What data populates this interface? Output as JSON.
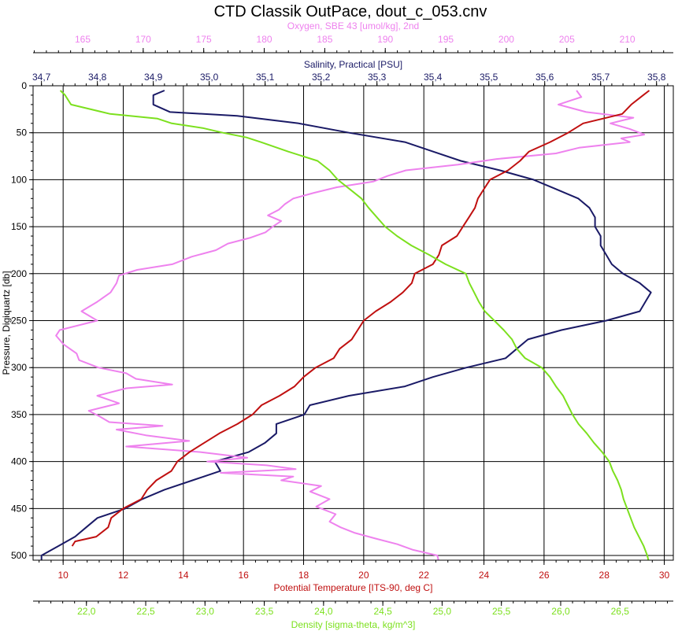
{
  "chart_data": {
    "type": "line",
    "title": "CTD Classik OutPace, dout_c_053.cnv",
    "grid": true,
    "colors": {
      "salinity": "#1a1a66",
      "oxygen": "#ee82ee",
      "temperature": "#c01010",
      "density": "#7ce01e",
      "grid": "#000000",
      "text": "#000000"
    },
    "y_axis": {
      "label": "Pressure, Digiquartz [db]",
      "range": [
        0,
        505
      ],
      "inverted": true,
      "ticks": [
        0,
        50,
        100,
        150,
        200,
        250,
        300,
        350,
        400,
        450,
        500
      ],
      "tick_labels": [
        "0",
        "50",
        "100",
        "150",
        "200",
        "250",
        "300",
        "350",
        "400",
        "450",
        "500"
      ]
    },
    "x_axes": [
      {
        "id": "oxygen",
        "position": "top",
        "label": "Oxygen, SBE 43 [umol/kg], 2nd",
        "range": [
          160.9,
          213.8
        ],
        "ticks": [
          165,
          170,
          175,
          180,
          185,
          190,
          195,
          200,
          205,
          210
        ],
        "tick_labels": [
          "165",
          "170",
          "175",
          "180",
          "185",
          "190",
          "195",
          "200",
          "205",
          "210"
        ]
      },
      {
        "id": "salinity",
        "position": "top",
        "label": "Salinity, Practical [PSU]",
        "range": [
          34.685,
          35.83
        ],
        "ticks": [
          34.7,
          34.8,
          34.9,
          35.0,
          35.1,
          35.2,
          35.3,
          35.4,
          35.5,
          35.6,
          35.7,
          35.8
        ],
        "tick_labels": [
          "34,7",
          "34,8",
          "34,9",
          "35,0",
          "35,1",
          "35,2",
          "35,3",
          "35,4",
          "35,5",
          "35,6",
          "35,7",
          "35,8"
        ]
      },
      {
        "id": "temperature",
        "position": "bottom",
        "label": "Potential Temperature [ITS-90, deg C]",
        "range": [
          9.0,
          30.3
        ],
        "ticks": [
          10,
          12,
          14,
          16,
          18,
          20,
          22,
          24,
          26,
          28,
          30
        ],
        "tick_labels": [
          "10",
          "12",
          "14",
          "16",
          "18",
          "20",
          "22",
          "24",
          "26",
          "28",
          "30"
        ]
      },
      {
        "id": "density",
        "position": "bottom",
        "label": "Density [sigma-theta, kg/m^3]",
        "range": [
          21.55,
          26.95
        ],
        "ticks": [
          22.0,
          22.5,
          23.0,
          23.5,
          24.0,
          24.5,
          25.0,
          25.5,
          26.0,
          26.5
        ],
        "tick_labels": [
          "22,0",
          "22,5",
          "23,0",
          "23,5",
          "24,0",
          "24,5",
          "25,0",
          "25,5",
          "26,0",
          "26,5"
        ]
      }
    ],
    "series": [
      {
        "id": "salinity",
        "axis": "salinity",
        "y": [
          5,
          10,
          20,
          28,
          32,
          40,
          50,
          60,
          70,
          80,
          90,
          100,
          110,
          120,
          130,
          140,
          150,
          160,
          170,
          180,
          190,
          200,
          210,
          220,
          230,
          240,
          250,
          260,
          270,
          280,
          290,
          300,
          310,
          320,
          330,
          340,
          350,
          360,
          370,
          380,
          390,
          400,
          410,
          420,
          430,
          440,
          450,
          460,
          470,
          480,
          490,
          500,
          505
        ],
        "x": [
          34.92,
          34.9,
          34.9,
          34.93,
          35.05,
          35.16,
          35.25,
          35.35,
          35.4,
          35.45,
          35.52,
          35.58,
          35.62,
          35.66,
          35.68,
          35.69,
          35.69,
          35.7,
          35.7,
          35.71,
          35.72,
          35.74,
          35.77,
          35.79,
          35.78,
          35.77,
          35.71,
          35.63,
          35.57,
          35.55,
          35.53,
          35.46,
          35.4,
          35.35,
          35.25,
          35.18,
          35.17,
          35.12,
          35.12,
          35.1,
          35.07,
          35.01,
          35.02,
          34.97,
          34.92,
          34.88,
          34.85,
          34.8,
          34.78,
          34.76,
          34.73,
          34.7,
          34.7
        ]
      },
      {
        "id": "oxygen",
        "axis": "oxygen",
        "y": [
          5,
          12,
          20,
          28,
          34,
          40,
          46,
          52,
          56,
          60,
          66,
          72,
          78,
          84,
          90,
          96,
          102,
          108,
          114,
          120,
          126,
          132,
          138,
          144,
          150,
          156,
          162,
          168,
          175,
          182,
          190,
          196,
          202,
          210,
          220,
          230,
          240,
          250,
          260,
          266,
          275,
          285,
          292,
          300,
          306,
          312,
          318,
          322,
          330,
          338,
          346,
          352,
          358,
          362,
          366,
          372,
          378,
          384,
          390,
          396,
          400,
          404,
          408,
          412,
          416,
          420,
          426,
          432,
          440,
          448,
          456,
          464,
          470,
          476,
          482,
          488,
          494,
          500,
          505
        ],
        "x": [
          205.8,
          206.2,
          204.3,
          206.6,
          210.5,
          208.6,
          210.2,
          211.4,
          209.5,
          210.2,
          206.0,
          204.1,
          199.2,
          196.0,
          191.7,
          190.2,
          189.0,
          186.0,
          184.1,
          182.4,
          181.7,
          181.2,
          180.3,
          181.4,
          180.7,
          180.1,
          178.8,
          177.0,
          176.0,
          174.0,
          172.4,
          169.5,
          168.0,
          167.8,
          167.3,
          166.2,
          164.9,
          166.2,
          163.1,
          162.8,
          163.4,
          164.5,
          164.7,
          166.3,
          168.6,
          169.4,
          172.4,
          168.6,
          166.2,
          168.0,
          165.5,
          166.4,
          167.2,
          171.6,
          167.8,
          170.2,
          173.8,
          168.6,
          174.8,
          178.6,
          175.3,
          180.2,
          182.6,
          176.4,
          182.4,
          181.4,
          184.7,
          183.8,
          185.4,
          184.3,
          185.9,
          185.4,
          186.3,
          187.5,
          189.2,
          191.0,
          192.3,
          194.3,
          194.4
        ]
      },
      {
        "id": "temperature",
        "axis": "temperature",
        "y": [
          5,
          10,
          20,
          30,
          40,
          50,
          60,
          70,
          80,
          90,
          100,
          110,
          120,
          130,
          140,
          150,
          160,
          170,
          180,
          190,
          200,
          210,
          220,
          230,
          240,
          250,
          260,
          270,
          280,
          290,
          300,
          310,
          320,
          330,
          340,
          350,
          360,
          370,
          380,
          390,
          400,
          410,
          420,
          430,
          440,
          450,
          460,
          470,
          480,
          485,
          490
        ],
        "x": [
          29.5,
          29.3,
          28.9,
          28.6,
          27.3,
          26.8,
          26.2,
          25.5,
          25.2,
          24.8,
          24.2,
          24.0,
          23.8,
          23.7,
          23.5,
          23.3,
          23.1,
          22.6,
          22.5,
          22.3,
          21.7,
          21.6,
          21.3,
          20.9,
          20.4,
          20.0,
          19.8,
          19.6,
          19.2,
          19.0,
          18.4,
          18.0,
          17.7,
          17.2,
          16.6,
          16.3,
          15.8,
          15.2,
          14.7,
          14.2,
          13.8,
          13.6,
          13.1,
          12.8,
          12.6,
          12.0,
          11.6,
          11.5,
          11.1,
          10.4,
          10.3
        ]
      },
      {
        "id": "density",
        "axis": "density",
        "y": [
          5,
          10,
          20,
          30,
          35,
          40,
          45,
          50,
          55,
          60,
          70,
          80,
          90,
          100,
          110,
          120,
          130,
          140,
          150,
          160,
          170,
          180,
          190,
          200,
          210,
          220,
          230,
          240,
          250,
          260,
          270,
          280,
          290,
          300,
          310,
          320,
          330,
          340,
          350,
          360,
          370,
          380,
          390,
          400,
          410,
          420,
          430,
          440,
          450,
          460,
          470,
          480,
          490,
          500,
          505
        ],
        "x": [
          21.78,
          21.82,
          21.87,
          22.2,
          22.6,
          22.72,
          22.98,
          23.15,
          23.35,
          23.47,
          23.7,
          23.95,
          24.05,
          24.12,
          24.22,
          24.32,
          24.38,
          24.45,
          24.52,
          24.62,
          24.74,
          24.89,
          25.03,
          25.2,
          25.23,
          25.27,
          25.31,
          25.36,
          25.44,
          25.52,
          25.59,
          25.63,
          25.7,
          25.84,
          25.91,
          25.96,
          26.02,
          26.06,
          26.1,
          26.15,
          26.22,
          26.28,
          26.35,
          26.41,
          26.44,
          26.48,
          26.51,
          26.53,
          26.56,
          26.59,
          26.62,
          26.66,
          26.7,
          26.73,
          26.74
        ]
      }
    ]
  }
}
